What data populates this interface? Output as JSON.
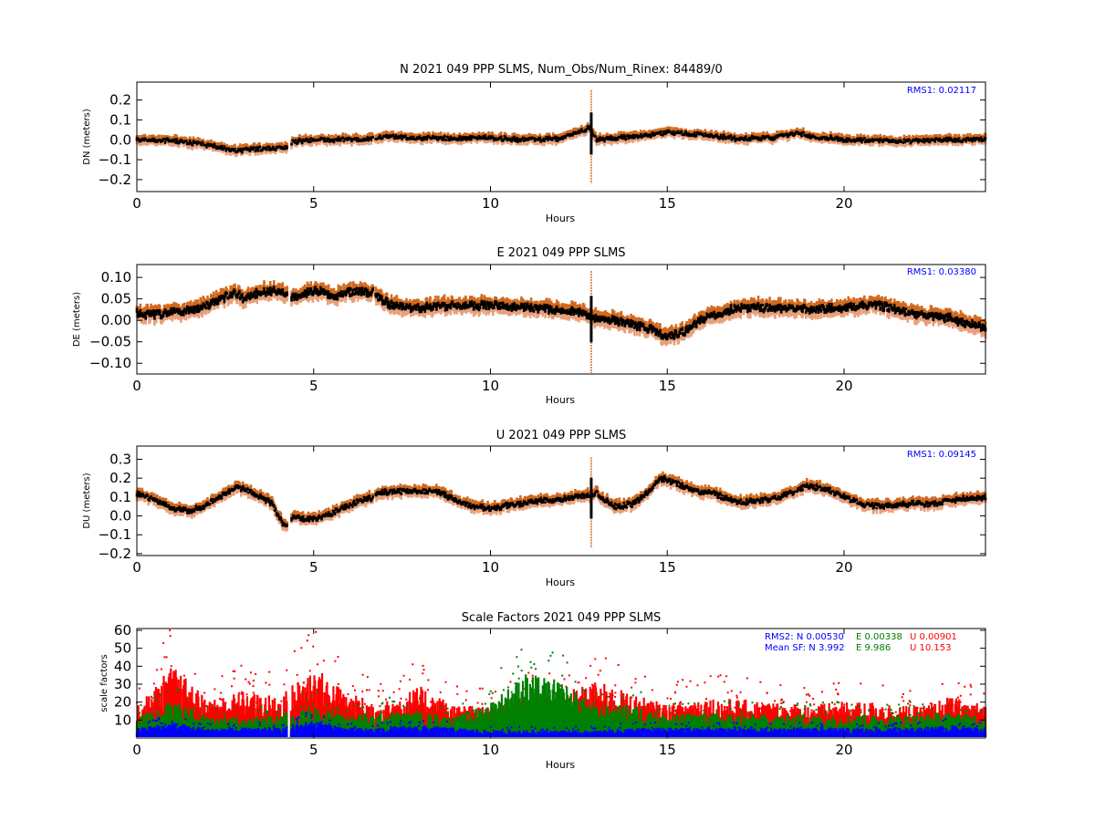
{
  "colors": {
    "band": "#d2691e",
    "band_light": "#e8a07a",
    "line": "#000000",
    "n": "#0000ff",
    "e": "#008000",
    "u": "#ff0000",
    "rms": "#0000ff"
  },
  "chart_data": [
    {
      "type": "line",
      "title": "N 2021 049 PPP  SLMS, Num_Obs/Num_Rinex: 84489/0",
      "xlabel": "Hours",
      "ylabel": "DN (meters)",
      "xlim": [
        0,
        24
      ],
      "ylim": [
        -0.26,
        0.29
      ],
      "xticks": [
        "0",
        "5",
        "10",
        "15",
        "20"
      ],
      "yticks": [
        "0.2",
        "0.1",
        "0.0",
        "−0.1",
        "−0.2"
      ],
      "ytick_values": [
        0.2,
        0.1,
        0.0,
        -0.1,
        -0.2
      ],
      "annotation": "RMS1:  0.02117",
      "gaps": [
        [
          4.25,
          4.35
        ],
        [
          6.7,
          6.75
        ]
      ],
      "spike": {
        "x": 12.85,
        "min": -0.22,
        "max": 0.25
      },
      "band_halfwidth": 0.02,
      "series": [
        {
          "x": [
            0,
            1,
            2,
            2.8,
            3.5,
            4.2,
            4.4,
            5,
            6,
            6.7,
            7,
            8,
            9,
            10,
            11,
            12,
            12.8,
            13,
            14,
            15,
            16,
            17,
            18,
            18.7,
            19,
            20,
            21,
            22,
            23,
            24
          ],
          "y": [
            0.0,
            -0.005,
            -0.025,
            -0.055,
            -0.045,
            -0.04,
            -0.01,
            -0.002,
            0.002,
            0.005,
            0.015,
            0.01,
            0.005,
            0.01,
            0.0,
            0.005,
            0.06,
            0.0,
            0.015,
            0.035,
            0.025,
            0.005,
            0.01,
            0.035,
            0.02,
            0.0,
            -0.005,
            -0.005,
            0.0,
            0.0
          ]
        }
      ]
    },
    {
      "type": "line",
      "title": "E 2021 049 PPP  SLMS",
      "xlabel": "Hours",
      "ylabel": "DE (meters)",
      "xlim": [
        0,
        24
      ],
      "ylim": [
        -0.125,
        0.13
      ],
      "xticks": [
        "0",
        "5",
        "10",
        "15",
        "20"
      ],
      "yticks": [
        "0.10",
        "0.05",
        "0.00",
        "−0.05",
        "−0.10"
      ],
      "ytick_values": [
        0.1,
        0.05,
        0.0,
        -0.05,
        -0.1
      ],
      "annotation": "RMS1:  0.03380",
      "gaps": [
        [
          4.25,
          4.35
        ],
        [
          6.7,
          6.75
        ]
      ],
      "spike": {
        "x": 12.85,
        "min": -0.125,
        "max": 0.115
      },
      "band_halfwidth": 0.015,
      "series": [
        {
          "x": [
            0,
            0.5,
            1,
            1.5,
            2,
            2.5,
            2.8,
            3,
            3.5,
            4,
            4.2,
            4.4,
            4.8,
            5.2,
            5.5,
            6,
            6.3,
            6.7,
            6.8,
            7.2,
            8,
            9,
            10,
            11,
            12,
            12.5,
            13,
            13.5,
            14,
            14.5,
            15,
            15.5,
            16,
            16.5,
            17,
            18,
            19,
            20,
            21,
            22,
            23,
            24
          ],
          "y": [
            0.015,
            0.012,
            0.018,
            0.025,
            0.035,
            0.055,
            0.065,
            0.05,
            0.065,
            0.07,
            0.06,
            0.055,
            0.065,
            0.068,
            0.055,
            0.065,
            0.068,
            0.065,
            0.055,
            0.035,
            0.03,
            0.035,
            0.035,
            0.03,
            0.025,
            0.02,
            0.005,
            0.0,
            -0.01,
            -0.02,
            -0.04,
            -0.025,
            0.005,
            0.015,
            0.03,
            0.03,
            0.025,
            0.03,
            0.035,
            0.015,
            0.005,
            -0.02
          ]
        }
      ]
    },
    {
      "type": "line",
      "title": "U 2021 049 PPP  SLMS",
      "xlabel": "Hours",
      "ylabel": "DU (meters)",
      "xlim": [
        0,
        24
      ],
      "ylim": [
        -0.21,
        0.37
      ],
      "xticks": [
        "0",
        "5",
        "10",
        "15",
        "20"
      ],
      "yticks": [
        "0.3",
        "0.2",
        "0.1",
        "0.0",
        "−0.1",
        "−0.2"
      ],
      "ytick_values": [
        0.3,
        0.2,
        0.1,
        0.0,
        -0.1,
        -0.2
      ],
      "annotation": "RMS1:  0.09145",
      "gaps": [
        [
          4.25,
          4.35
        ],
        [
          6.7,
          6.75
        ]
      ],
      "spike": {
        "x": 12.85,
        "min": -0.17,
        "max": 0.31
      },
      "band_halfwidth": 0.025,
      "series": [
        {
          "x": [
            0,
            0.5,
            1,
            1.5,
            2,
            2.5,
            2.8,
            3.2,
            3.8,
            4.2,
            4.4,
            4.8,
            5.2,
            5.8,
            6.3,
            6.7,
            6.8,
            7.5,
            8.5,
            9,
            9.5,
            10,
            11,
            12,
            12.5,
            13,
            13.5,
            14,
            14.5,
            14.8,
            15.3,
            15.8,
            16.3,
            17,
            18,
            19,
            19.5,
            20,
            20.5,
            21,
            22,
            22.5,
            23,
            24
          ],
          "y": [
            0.12,
            0.085,
            0.04,
            0.025,
            0.06,
            0.12,
            0.155,
            0.13,
            0.07,
            -0.06,
            0.0,
            -0.02,
            -0.01,
            0.04,
            0.08,
            0.1,
            0.12,
            0.13,
            0.13,
            0.085,
            0.05,
            0.04,
            0.07,
            0.09,
            0.1,
            0.12,
            0.05,
            0.06,
            0.13,
            0.2,
            0.17,
            0.13,
            0.12,
            0.07,
            0.09,
            0.16,
            0.14,
            0.1,
            0.06,
            0.05,
            0.065,
            0.06,
            0.085,
            0.1
          ]
        }
      ]
    },
    {
      "type": "line",
      "title": "Scale Factors 2021 049 PPP  SLMS",
      "xlabel": "Hours",
      "ylabel": "scale factors",
      "xlim": [
        0,
        24
      ],
      "ylim": [
        0,
        61
      ],
      "xticks": [
        "0",
        "5",
        "10",
        "15",
        "20"
      ],
      "yticks": [
        "60",
        "50",
        "40",
        "30",
        "20",
        "10"
      ],
      "ytick_values": [
        60,
        50,
        40,
        30,
        20,
        10
      ],
      "gaps": [
        [
          4.25,
          4.35
        ],
        [
          6.7,
          6.75
        ]
      ],
      "legend_rows": [
        {
          "n": "RMS2: N  0.00530",
          "e": "E  0.00338",
          "u": "U  0.00901"
        },
        {
          "n": "Mean SF: N   3.992",
          "e": "E   9.986",
          "u": "U  10.153"
        }
      ],
      "series": [
        {
          "name": "N",
          "color": "#0000ff",
          "x": [
            0,
            1,
            2,
            3,
            4,
            5,
            6,
            7,
            8,
            9,
            10,
            11,
            12,
            13,
            14,
            15,
            16,
            17,
            18,
            19,
            20,
            21,
            22,
            23,
            24
          ],
          "y": [
            4,
            6,
            4,
            4,
            4,
            7,
            4,
            4,
            5,
            4,
            3,
            3,
            3,
            3,
            4,
            4,
            4,
            4,
            4,
            4,
            4,
            4,
            4,
            5,
            4
          ]
        },
        {
          "name": "E",
          "color": "#008000",
          "x": [
            0,
            1,
            2,
            3,
            4,
            5,
            6,
            7,
            8,
            9,
            10,
            11,
            12,
            13,
            14,
            15,
            16,
            17,
            18,
            19,
            20,
            21,
            22,
            23,
            24
          ],
          "y": [
            8,
            15,
            8,
            8,
            9,
            12,
            9,
            10,
            10,
            8,
            14,
            25,
            22,
            12,
            13,
            9,
            10,
            9,
            9,
            9,
            9,
            9,
            9,
            10,
            9
          ]
        },
        {
          "name": "U",
          "color": "#ff0000",
          "x": [
            0,
            1,
            2,
            3,
            4,
            5,
            6,
            7,
            8,
            9,
            10,
            11,
            12,
            13,
            14,
            15,
            16,
            17,
            18,
            19,
            20,
            21,
            22,
            23,
            24
          ],
          "y": [
            12,
            28,
            15,
            18,
            16,
            28,
            17,
            14,
            20,
            13,
            12,
            16,
            17,
            22,
            17,
            13,
            16,
            15,
            14,
            13,
            14,
            14,
            12,
            16,
            13
          ]
        }
      ]
    }
  ]
}
